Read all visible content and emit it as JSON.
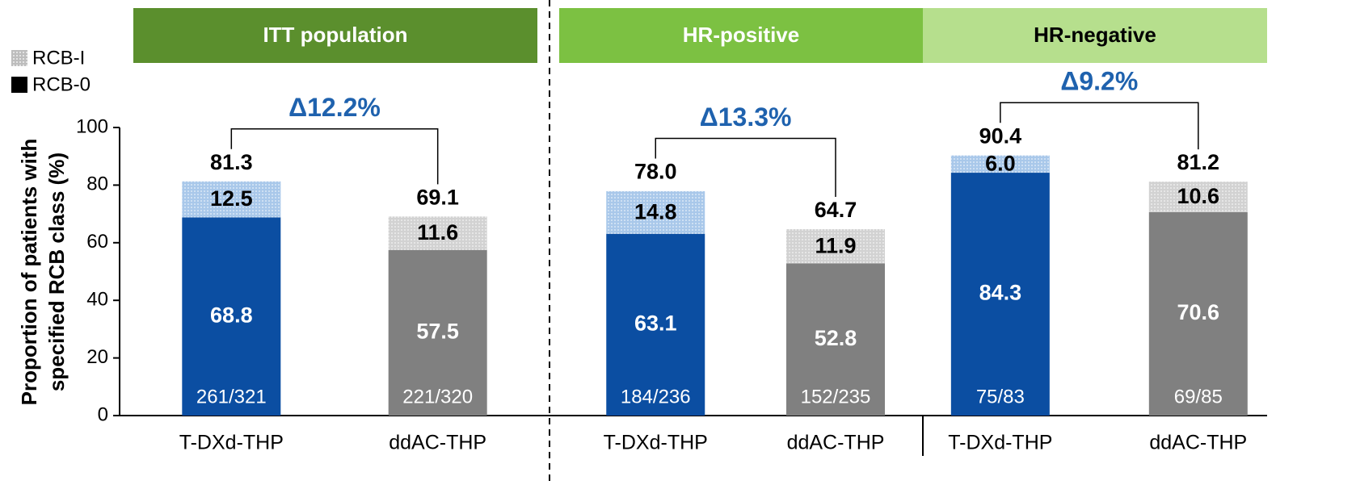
{
  "chart_data": {
    "type": "stacked_bar",
    "y_label": [
      "Proportion of patients with",
      "specified RCB class (%)"
    ],
    "ylim": [
      0,
      100
    ],
    "yticks": [
      0,
      20,
      40,
      60,
      80,
      100
    ],
    "series": [
      {
        "name": "RCB-0",
        "colors": [
          "#0b4ea2",
          "#808080"
        ]
      },
      {
        "name": "RCB-I",
        "colors": [
          "#a9c8ea",
          "#d2d2d2"
        ]
      }
    ],
    "panels": [
      {
        "title": "ITT population",
        "header_color": "#5b8f2d",
        "header_text_color": "#ffffff",
        "categories": [
          "T-DXd-THP",
          "ddAC-THP"
        ],
        "rcb0": [
          68.8,
          57.5
        ],
        "rcb1": [
          12.5,
          11.6
        ],
        "totals": [
          81.3,
          69.1
        ],
        "n_labels": [
          "261/321",
          "221/320"
        ],
        "delta": "Δ12.2%"
      },
      {
        "title": "HR-positive",
        "header_color": "#7cc142",
        "header_text_color": "#ffffff",
        "categories": [
          "T-DXd-THP",
          "ddAC-THP"
        ],
        "rcb0": [
          63.1,
          52.8
        ],
        "rcb1": [
          14.8,
          11.9
        ],
        "totals": [
          78.0,
          64.7
        ],
        "value_labels_totals": [
          "78.0",
          "64.7"
        ],
        "n_labels": [
          "184/236",
          "152/235"
        ],
        "delta": "Δ13.3%"
      },
      {
        "title": "HR-negative",
        "header_color": "#b6df8d",
        "header_text_color": "#000000",
        "categories": [
          "T-DXd-THP",
          "ddAC-THP"
        ],
        "rcb0": [
          84.3,
          70.6
        ],
        "rcb1": [
          6.0,
          10.6
        ],
        "value_labels_rcb1": [
          "6.0",
          "10.6"
        ],
        "totals": [
          90.4,
          81.2
        ],
        "n_labels": [
          "75/83",
          "69/85"
        ],
        "delta": "Δ9.2%"
      }
    ]
  }
}
